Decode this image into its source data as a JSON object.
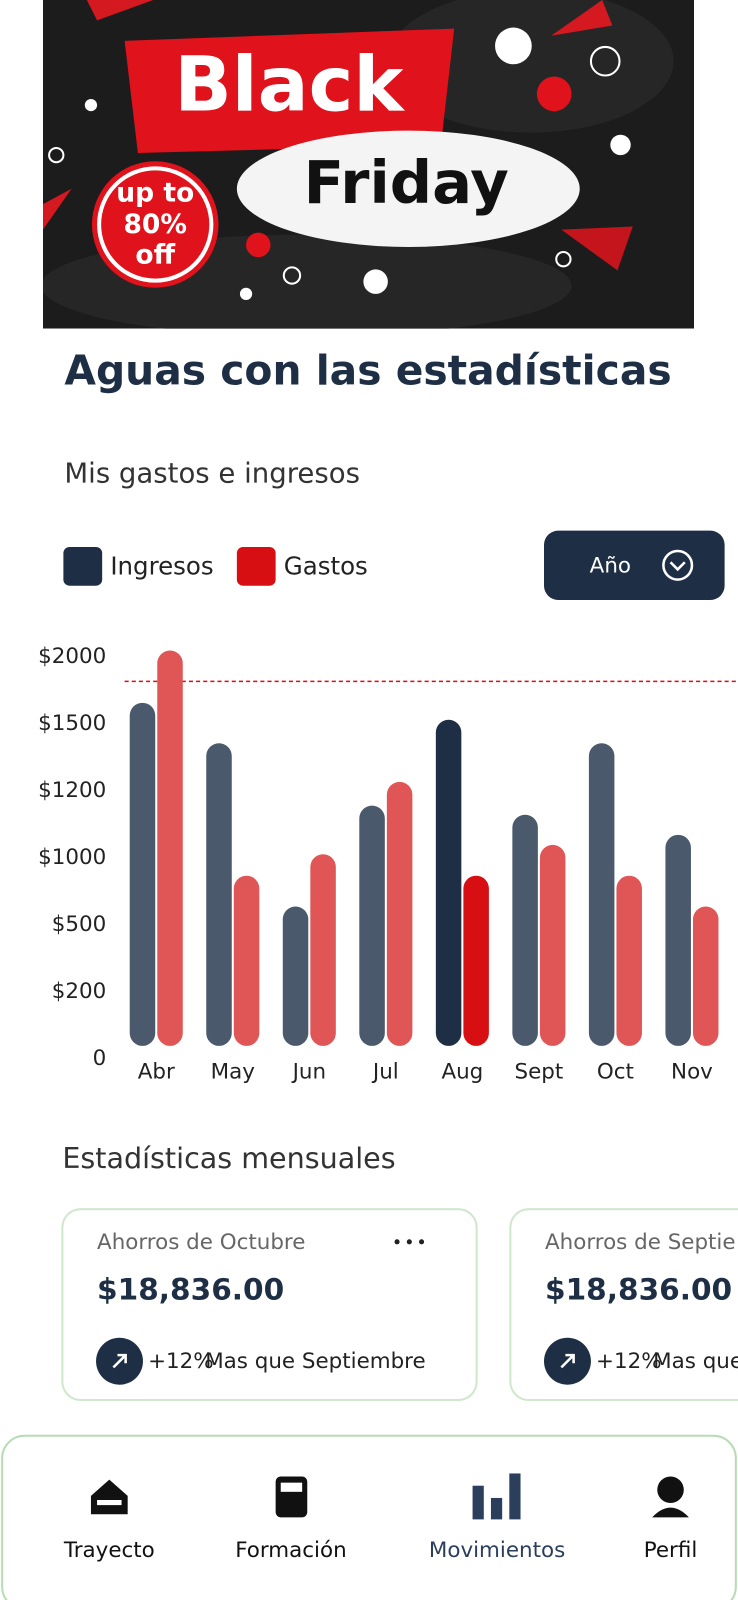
{
  "banner": {
    "line1": "Black",
    "line2": "Friday",
    "badge": [
      "up to",
      "80%",
      "off"
    ]
  },
  "title": "Aguas con las estadísticas",
  "subtitle": "Mis gastos e ingresos",
  "period_button": "Año",
  "chart_data": {
    "type": "bar",
    "categories": [
      "Abr",
      "May",
      "Jun",
      "Jul",
      "Aug",
      "Sept",
      "Oct",
      "Nov"
    ],
    "series": [
      {
        "name": "Ingresos",
        "color": "#4a5a6c",
        "highlight_color": "#1e2f45",
        "values": [
          1560,
          1355,
          540,
          1117,
          1460,
          1090,
          1355,
          1030
        ]
      },
      {
        "name": "Gastos",
        "color": "#e05656",
        "highlight_color": "#d70f12",
        "values": [
          1950,
          770,
          930,
          1188,
          770,
          1000,
          770,
          540
        ]
      }
    ],
    "ylim": [
      0,
      2000
    ],
    "yticks": [
      0,
      {
        "value": 200,
        "label": "$200"
      },
      {
        "value": 500,
        "label": "$500"
      },
      {
        "value": 1000,
        "label": "$1000"
      },
      {
        "value": 1200,
        "label": "$1200"
      },
      {
        "value": 1500,
        "label": "$1500"
      },
      {
        "value": 2000,
        "label": "$2000"
      }
    ],
    "highlight_index": 4,
    "reference_line": 1720
  },
  "section_title": "Estadísticas mensuales",
  "cards": [
    {
      "label": "Ahorros de Octubre",
      "amount": "$18,836.00",
      "change": "+12%",
      "note": "Mas que Septiembre"
    },
    {
      "label": "Ahorros de Septie",
      "amount": "$18,836.00",
      "change": "+12%",
      "note": "Mas que"
    }
  ],
  "nav": [
    "Trayecto",
    "Formación",
    "Movimientos",
    "Perfil"
  ]
}
